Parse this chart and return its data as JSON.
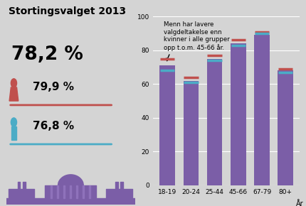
{
  "title": "Stortingsvalget 2013",
  "overall_pct": "78,2 %",
  "women_pct": "79,9 %",
  "men_pct": "76,8 %",
  "categories": [
    "18-19",
    "20-24",
    "25-44",
    "45-66",
    "67-79",
    "80+"
  ],
  "bar_values": [
    71,
    62,
    75,
    84,
    89,
    68
  ],
  "women_values": [
    75,
    64,
    77,
    86,
    91,
    69
  ],
  "men_values": [
    68,
    61,
    74,
    83,
    90,
    67
  ],
  "bar_color": "#7b5ea7",
  "women_line_color": "#c0504d",
  "men_line_color": "#4bacc6",
  "bg_color": "#d4d4d4",
  "annotation_text": "Menn har lavere\nvalgdeltakelse enn\nkvinner i alle grupper\nopp t.o.m. 45-66 år.",
  "xlabel": "År",
  "ylim": [
    0,
    100
  ],
  "yticks": [
    0,
    20,
    40,
    60,
    80,
    100
  ]
}
